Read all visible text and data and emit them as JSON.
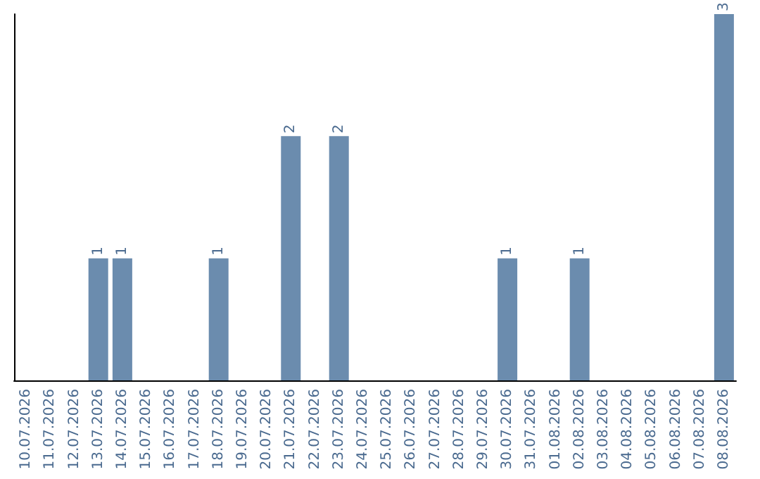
{
  "chart_data": {
    "type": "bar",
    "categories": [
      "10.07.2026",
      "11.07.2026",
      "12.07.2026",
      "13.07.2026",
      "14.07.2026",
      "15.07.2026",
      "16.07.2026",
      "17.07.2026",
      "18.07.2026",
      "19.07.2026",
      "20.07.2026",
      "21.07.2026",
      "22.07.2026",
      "23.07.2026",
      "24.07.2026",
      "25.07.2026",
      "26.07.2026",
      "27.07.2026",
      "28.07.2026",
      "29.07.2026",
      "30.07.2026",
      "31.07.2026",
      "01.08.2026",
      "02.08.2026",
      "03.08.2026",
      "04.08.2026",
      "05.08.2026",
      "06.08.2026",
      "07.08.2026",
      "08.08.2026"
    ],
    "values": [
      0,
      0,
      0,
      1,
      1,
      0,
      0,
      0,
      1,
      0,
      0,
      2,
      0,
      2,
      0,
      0,
      0,
      0,
      0,
      0,
      1,
      0,
      0,
      1,
      0,
      0,
      0,
      0,
      0,
      3
    ],
    "value_labels": [
      null,
      null,
      null,
      "1",
      "1",
      null,
      null,
      null,
      "1",
      null,
      null,
      "2",
      null,
      "2",
      null,
      null,
      null,
      null,
      null,
      null,
      "1",
      null,
      null,
      "1",
      null,
      null,
      null,
      null,
      null,
      "3"
    ],
    "color": "#6b8cae",
    "ylim": [
      0,
      3
    ],
    "tick_labels": "x"
  }
}
